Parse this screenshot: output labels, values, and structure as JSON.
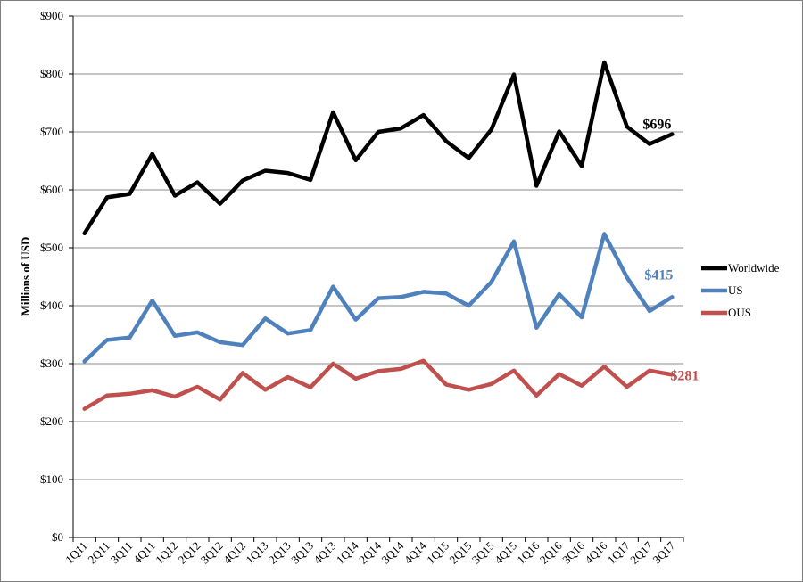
{
  "chart_data": {
    "type": "line",
    "ylabel": "Millions of USD",
    "ylim": [
      0,
      900
    ],
    "y_ticks": [
      "$0",
      "$100",
      "$200",
      "$300",
      "$400",
      "$500",
      "$600",
      "$700",
      "$800",
      "$900"
    ],
    "grid": true,
    "legend_position": "right",
    "categories": [
      "1Q11",
      "2Q11",
      "3Q11",
      "4Q11",
      "1Q12",
      "2Q12",
      "3Q12",
      "4Q12",
      "1Q13",
      "2Q13",
      "3Q13",
      "4Q13",
      "1Q14",
      "2Q14",
      "3Q14",
      "4Q14",
      "1Q15",
      "2Q15",
      "3Q15",
      "4Q15",
      "1Q16",
      "2Q16",
      "3Q16",
      "4Q16",
      "1Q17",
      "2Q17",
      "3Q17"
    ],
    "series": [
      {
        "name": "Worldwide",
        "color": "#000000",
        "end_label": "$696",
        "values": [
          525,
          587,
          593,
          662,
          590,
          613,
          576,
          616,
          633,
          629,
          617,
          734,
          651,
          700,
          706,
          729,
          684,
          655,
          704,
          799,
          607,
          701,
          641,
          820,
          709,
          679,
          696
        ]
      },
      {
        "name": "US",
        "color": "#4f81bd",
        "end_label": "$415",
        "values": [
          304,
          341,
          345,
          409,
          348,
          354,
          337,
          332,
          378,
          352,
          358,
          433,
          376,
          413,
          415,
          424,
          421,
          400,
          441,
          511,
          362,
          420,
          380,
          524,
          449,
          391,
          415
        ]
      },
      {
        "name": "OUS",
        "color": "#c0504d",
        "end_label": "$281",
        "values": [
          222,
          245,
          248,
          254,
          243,
          260,
          238,
          284,
          255,
          277,
          259,
          300,
          274,
          287,
          291,
          305,
          264,
          255,
          265,
          288,
          245,
          282,
          262,
          295,
          260,
          288,
          281
        ]
      }
    ]
  }
}
